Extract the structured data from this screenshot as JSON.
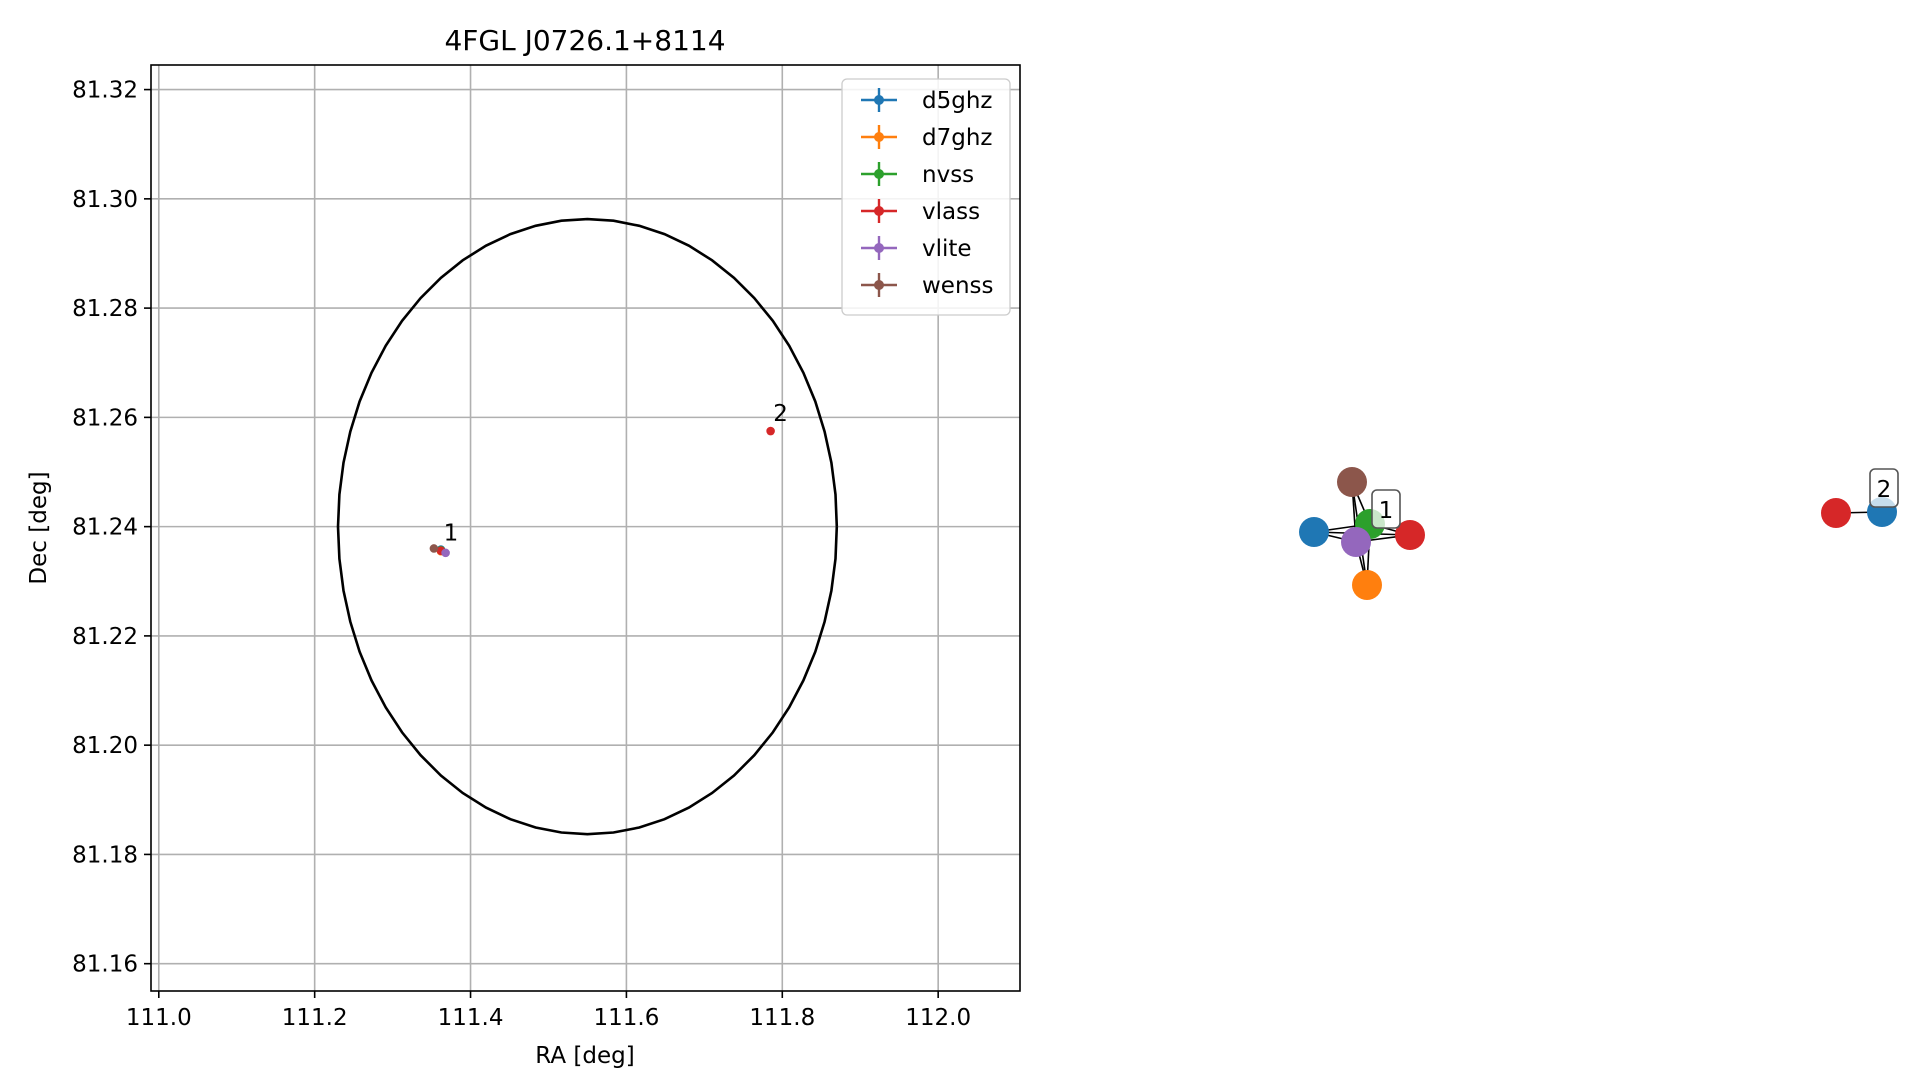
{
  "chart_data": [
    {
      "type": "scatter",
      "title": "4FGL J0726.1+8114",
      "xlabel": "RA [deg]",
      "ylabel": "Dec [deg]",
      "xlim": [
        110.99,
        112.105
      ],
      "ylim": [
        81.155,
        81.3245
      ],
      "xticks": [
        "111.0",
        "111.2",
        "111.4",
        "111.6",
        "111.8",
        "112.0"
      ],
      "yticks": [
        "81.16",
        "81.18",
        "81.20",
        "81.22",
        "81.24",
        "81.26",
        "81.28",
        "81.30",
        "81.32"
      ],
      "grid": true,
      "legend_position": "top-right",
      "colors": {
        "d5ghz": "#1f77b4",
        "d7ghz": "#ff7f0e",
        "nvss": "#2ca02c",
        "vlass": "#d62728",
        "vlite": "#9467bd",
        "wenss": "#8c564b"
      },
      "series": [
        {
          "name": "d5ghz",
          "x": [
            111.362
          ],
          "y": [
            81.2358
          ]
        },
        {
          "name": "d7ghz",
          "x": [
            111.362
          ],
          "y": [
            81.2355
          ]
        },
        {
          "name": "nvss",
          "x": [
            111.362
          ],
          "y": [
            81.2357
          ]
        },
        {
          "name": "vlass",
          "x": [
            111.362,
            111.785
          ],
          "y": [
            81.2356,
            81.2575
          ]
        },
        {
          "name": "vlite",
          "x": [
            111.368
          ],
          "y": [
            81.2352
          ]
        },
        {
          "name": "wenss",
          "x": [
            111.353
          ],
          "y": [
            81.236
          ]
        }
      ],
      "annotations": [
        {
          "text": "1",
          "x": 111.362,
          "y": 81.2356
        },
        {
          "text": "2",
          "x": 111.785,
          "y": 81.2575
        }
      ],
      "ellipse": {
        "center": [
          111.55,
          81.24
        ],
        "ra_semi_axis": 0.32,
        "dec_semi_axis": 0.0563,
        "color": "#000000"
      }
    },
    {
      "type": "network",
      "nodes": [
        {
          "id": "d5ghz-1",
          "color": "d5ghz"
        },
        {
          "id": "wenss-1",
          "color": "wenss"
        },
        {
          "id": "nvss-1",
          "color": "nvss"
        },
        {
          "id": "vlite-1",
          "color": "vlite"
        },
        {
          "id": "vlass-1",
          "color": "vlass"
        },
        {
          "id": "d7ghz-1",
          "color": "d7ghz"
        },
        {
          "id": "vlass-2",
          "color": "vlass"
        },
        {
          "id": "d5ghz-2",
          "color": "d5ghz"
        }
      ],
      "edges": [
        [
          "d5ghz-1",
          "nvss-1"
        ],
        [
          "d5ghz-1",
          "vlite-1"
        ],
        [
          "d5ghz-1",
          "vlass-1"
        ],
        [
          "wenss-1",
          "nvss-1"
        ],
        [
          "wenss-1",
          "vlite-1"
        ],
        [
          "wenss-1",
          "d7ghz-1"
        ],
        [
          "nvss-1",
          "vlass-1"
        ],
        [
          "nvss-1",
          "d7ghz-1"
        ],
        [
          "nvss-1",
          "vlite-1"
        ],
        [
          "vlite-1",
          "vlass-1"
        ],
        [
          "vlite-1",
          "d7ghz-1"
        ],
        [
          "vlass-2",
          "d5ghz-2"
        ]
      ],
      "group_labels": [
        "1",
        "2"
      ]
    }
  ]
}
